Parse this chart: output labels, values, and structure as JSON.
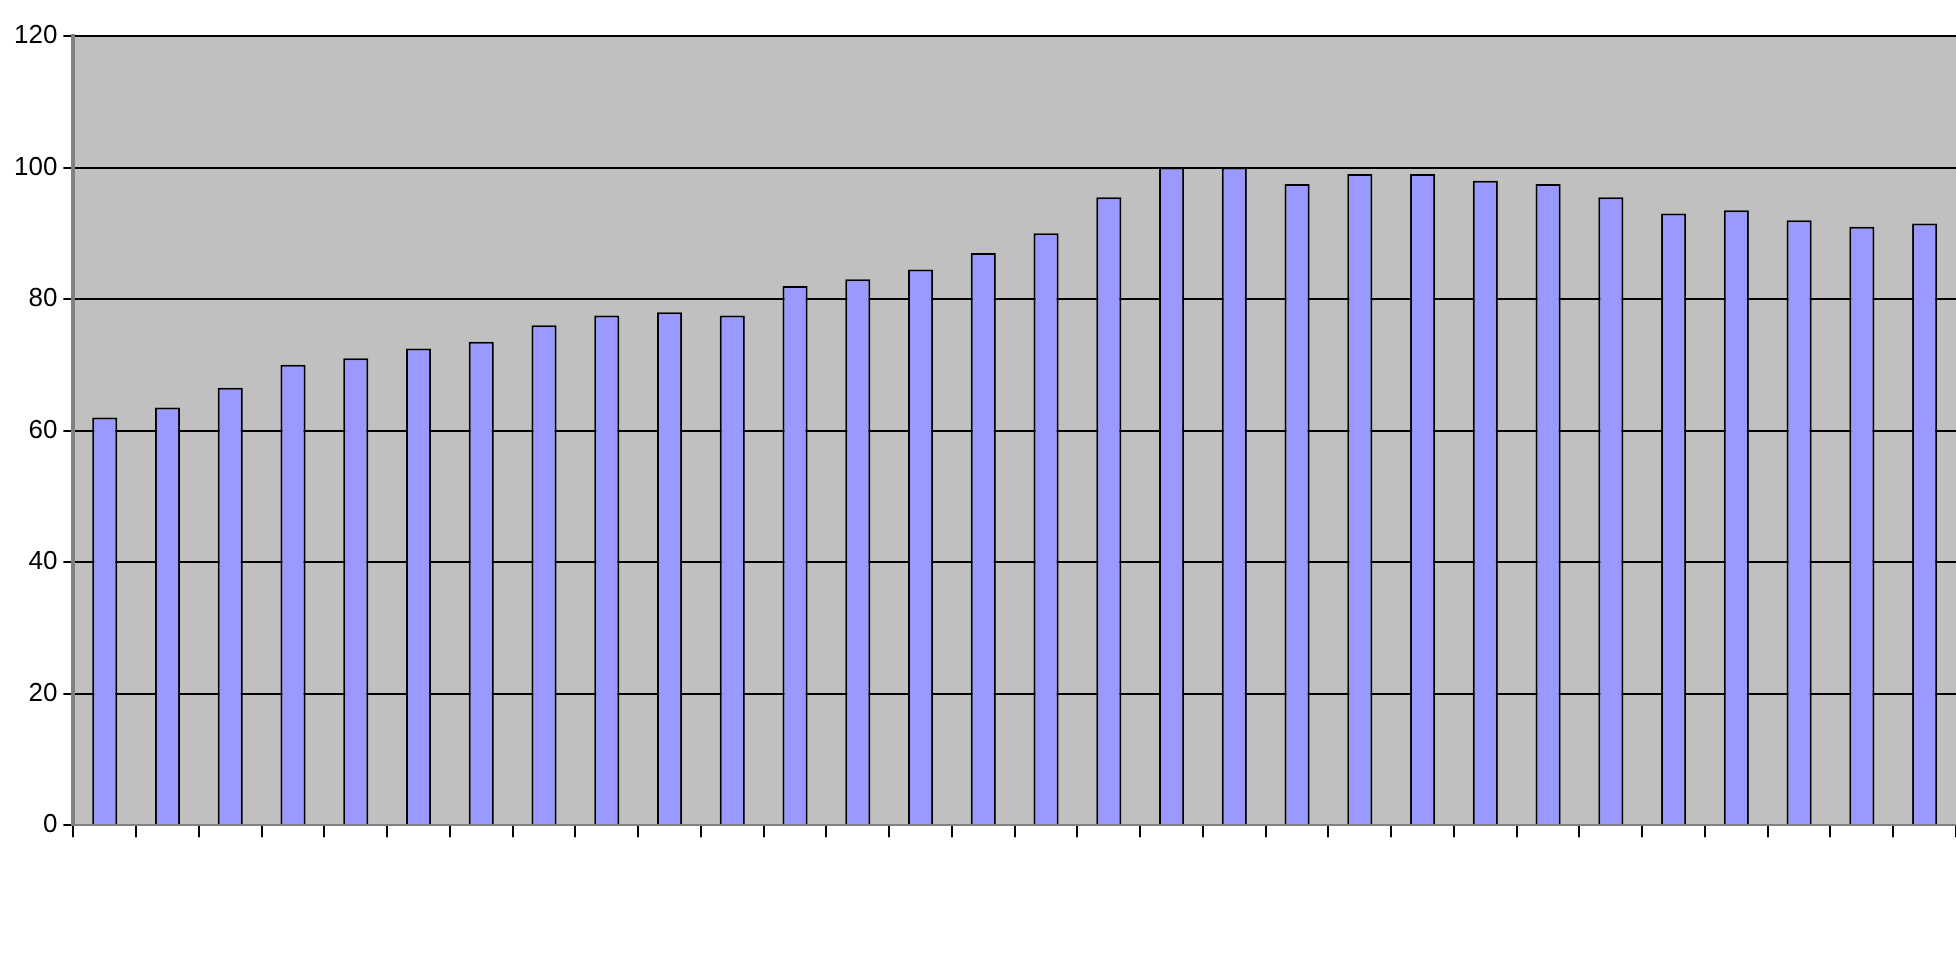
{
  "chart_data": {
    "type": "bar",
    "categories": [
      null,
      null,
      null,
      null,
      null,
      null,
      null,
      null,
      null,
      null,
      null,
      null,
      null,
      null,
      null,
      null,
      null,
      null,
      null,
      null,
      null,
      null,
      null,
      null,
      null,
      null,
      null,
      null,
      null,
      null
    ],
    "values": [
      62,
      63.5,
      66.5,
      70,
      71,
      72.5,
      73.5,
      76,
      77.5,
      78,
      77.5,
      82,
      83,
      84.5,
      87,
      90,
      95.5,
      100,
      100,
      97.5,
      99,
      99,
      98,
      97.5,
      95.5,
      93,
      93.5,
      92,
      91,
      91.5
    ],
    "color": "#9999ff",
    "ylim": [
      0,
      120
    ],
    "yticks": [
      0,
      20,
      40,
      60,
      80,
      100,
      120
    ],
    "grid": "y"
  }
}
